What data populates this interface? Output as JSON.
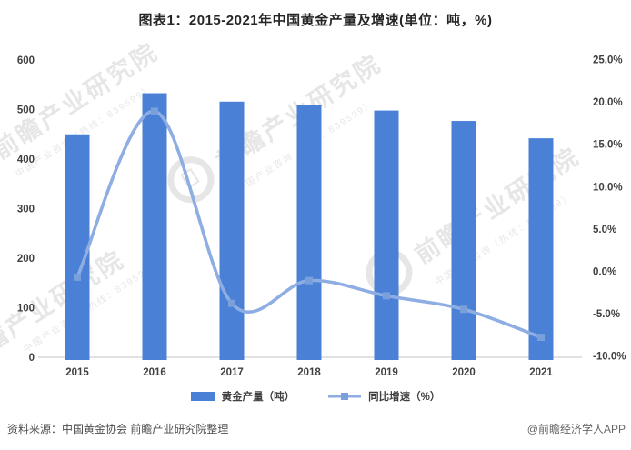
{
  "title": "图表1：2015-2021年中国黄金产量及增速(单位：吨，%)",
  "legend": [
    {
      "label": "黄金产量（吨）",
      "swatch": "bar"
    },
    {
      "label": "同比增速（%）",
      "swatch": "line"
    }
  ],
  "source": {
    "left": "资料来源：中国黄金协会 前瞻产业研究院整理",
    "right": "@前瞻经济学人APP"
  },
  "watermark": {
    "brand": "前瞻产业研究院",
    "sub": "中国产业咨询（热线：839599）"
  },
  "colors": {
    "bar": "#4a80d6",
    "line": "#8eaee3",
    "marker": "#7aa0dc",
    "axis_line": "#d9d9d9",
    "tick_text": "#404040",
    "title_text": "#262626",
    "watermark": "#d6d6d6"
  },
  "chart_data": {
    "type": "combo-bar-line",
    "title": "图表1：2015-2021年中国黄金产量及增速(单位：吨，%)",
    "categories": [
      "2015",
      "2016",
      "2017",
      "2018",
      "2019",
      "2020",
      "2021"
    ],
    "series": [
      {
        "name": "黄金产量（吨）",
        "type": "bar",
        "axis": "left",
        "unit": "吨",
        "values": [
          450,
          533,
          516,
          510,
          498,
          477,
          442
        ]
      },
      {
        "name": "同比增速（%）",
        "type": "line",
        "axis": "right",
        "unit": "%",
        "smooth": true,
        "values": [
          -0.7,
          18.9,
          -3.8,
          -1.1,
          -2.9,
          -4.5,
          -7.8
        ]
      }
    ],
    "left_axis": {
      "min": 0,
      "max": 600,
      "step": 100,
      "tick_labels": [
        "0",
        "100",
        "200",
        "300",
        "400",
        "500",
        "600"
      ]
    },
    "right_axis": {
      "min": -10,
      "max": 25,
      "step": 5,
      "tick_labels": [
        "-10.0%",
        "-5.0%",
        "0.0%",
        "5.0%",
        "10.0%",
        "15.0%",
        "20.0%",
        "25.0%"
      ]
    },
    "grid": false,
    "legend_position": "bottom"
  }
}
